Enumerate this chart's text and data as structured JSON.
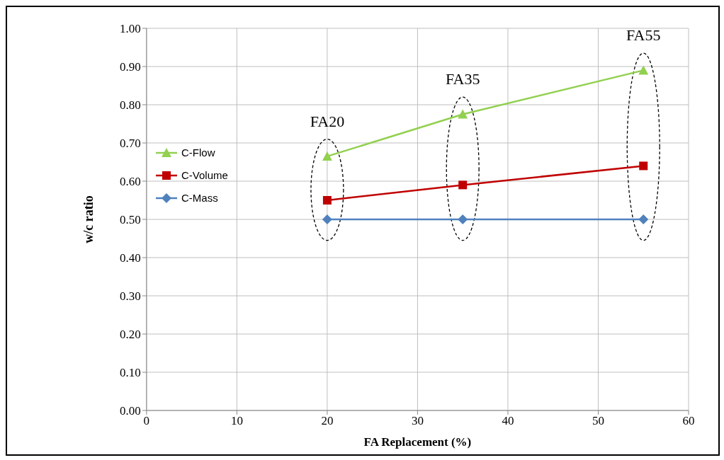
{
  "chart_data": {
    "type": "line",
    "xlabel": "FA Replacement (%)",
    "ylabel": "w/c ratio",
    "x": [
      20,
      35,
      55
    ],
    "series": [
      {
        "name": "C-Flow",
        "color": "#92d050",
        "values": [
          0.665,
          0.775,
          0.89
        ],
        "marker": "triangle"
      },
      {
        "name": "C-Volume",
        "color": "#c00000",
        "values": [
          0.55,
          0.59,
          0.64
        ],
        "marker": "square"
      },
      {
        "name": "C-Mass",
        "color": "#4f81bd",
        "values": [
          0.5,
          0.5,
          0.5
        ],
        "marker": "diamond"
      }
    ],
    "xlim": [
      0,
      60
    ],
    "xticks": [
      0,
      10,
      20,
      30,
      40,
      50,
      60
    ],
    "ylim": [
      0,
      1
    ],
    "yticks": [
      {
        "value": 0,
        "label": "0.00"
      },
      {
        "value": 0.1,
        "label": "0.10"
      },
      {
        "value": 0.2,
        "label": "0.20"
      },
      {
        "value": 0.3,
        "label": "0.30"
      },
      {
        "value": 0.4,
        "label": "0.40"
      },
      {
        "value": 0.5,
        "label": "0.50"
      },
      {
        "value": 0.6,
        "label": "0.60"
      },
      {
        "value": 0.7,
        "label": "0.70"
      },
      {
        "value": 0.8,
        "label": "0.80"
      },
      {
        "value": 0.9,
        "label": "0.90"
      },
      {
        "value": 1,
        "label": "1.00"
      }
    ],
    "annotations": [
      "FA20",
      "FA35",
      "FA55"
    ],
    "grid": true,
    "legend": "left",
    "line_style": "solid"
  }
}
